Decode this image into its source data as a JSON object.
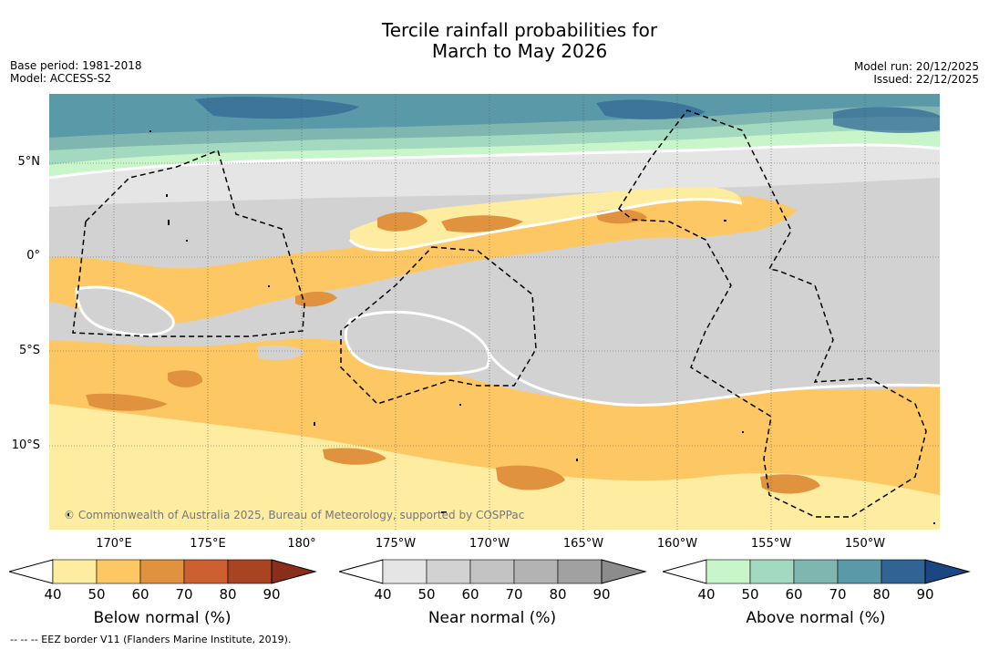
{
  "title": {
    "line1": "Tercile rainfall probabilities for",
    "line2": "March to May 2026"
  },
  "meta": {
    "base_period": "Base period: 1981-2018",
    "model": "Model: ACCESS-S2",
    "model_run": "Model run: 20/12/2025",
    "issued": "Issued: 22/12/2025"
  },
  "axes": {
    "lat_labels": [
      "5°N",
      "0°",
      "5°S",
      "10°S"
    ],
    "lon_labels": [
      "170°E",
      "175°E",
      "180°",
      "175°W",
      "170°W",
      "165°W",
      "160°W",
      "155°W",
      "150°W"
    ]
  },
  "copyright": "© Commonwealth of Australia 2025, Bureau of Meteorology, supported by COSPPac",
  "colorbars": [
    {
      "title": "Below normal (%)",
      "ticks": [
        "40",
        "50",
        "60",
        "70",
        "80",
        "90"
      ],
      "colors": [
        "#ffffff",
        "#feeca0",
        "#fdc864",
        "#e0923f",
        "#cc6030",
        "#a94422",
        "#8a2e1c"
      ]
    },
    {
      "title": "Near normal (%)",
      "ticks": [
        "40",
        "50",
        "60",
        "70",
        "80",
        "90"
      ],
      "colors": [
        "#ffffff",
        "#e5e5e5",
        "#d2d2d2",
        "#c3c3c3",
        "#b3b3b3",
        "#a1a1a1",
        "#8c8c8c"
      ]
    },
    {
      "title": "Above normal (%)",
      "ticks": [
        "40",
        "50",
        "60",
        "70",
        "80",
        "90"
      ],
      "colors": [
        "#ffffff",
        "#c9f5cb",
        "#a3d9c0",
        "#7fb7b0",
        "#5a9aa8",
        "#2f6494",
        "#1a4683"
      ]
    }
  ],
  "legend_footnote": "--  --  -- EEZ border V11 (Flanders Marine Institute, 2019)."
}
